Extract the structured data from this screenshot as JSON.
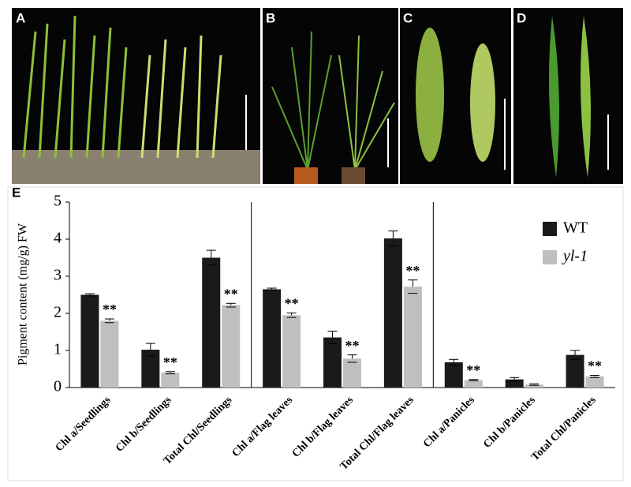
{
  "panels": [
    "A",
    "B",
    "C",
    "D"
  ],
  "chart_data": {
    "type": "bar",
    "panel_label": "E",
    "y_label": "Pigment content (mg/g) FW",
    "categories": [
      "Chl a/Seedlings",
      "Chl b/Seedlings",
      "Total Chl/Seedlings",
      "Chl a/Flag leaves",
      "Chl b/Flag leaves",
      "Total Chl/Flag leaves",
      "Chl a/Panicles",
      "Chl b/Panicles",
      "Total Chl/Panicles"
    ],
    "series": [
      {
        "name": "WT",
        "color": "#1a1a1a",
        "values": [
          2.5,
          1.02,
          3.5,
          2.65,
          1.35,
          4.02,
          0.68,
          0.22,
          0.88
        ],
        "errors": [
          0.03,
          0.17,
          0.2,
          0.03,
          0.17,
          0.2,
          0.08,
          0.05,
          0.12
        ]
      },
      {
        "name": "yl-1",
        "color": "#bfbfbf",
        "values": [
          1.8,
          0.4,
          2.22,
          1.95,
          0.78,
          2.72,
          0.2,
          0.08,
          0.3
        ],
        "errors": [
          0.05,
          0.03,
          0.05,
          0.06,
          0.1,
          0.18,
          0.02,
          0.02,
          0.03
        ],
        "significance": [
          "**",
          "**",
          "**",
          "**",
          "**",
          "**",
          "**",
          null,
          "**"
        ]
      }
    ],
    "ylim": [
      0,
      5
    ],
    "yticks": [
      0,
      1,
      2,
      3,
      4,
      5
    ],
    "legend": "upper right"
  }
}
